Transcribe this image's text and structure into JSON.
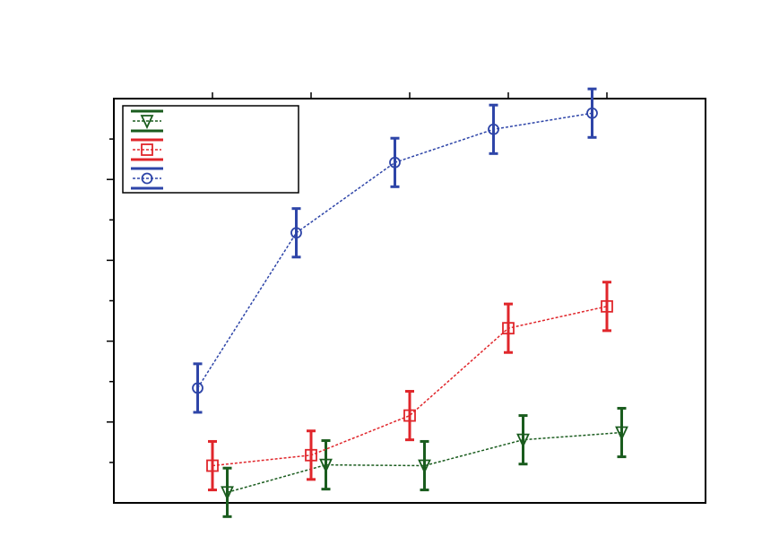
{
  "colors": {
    "green": "#1a5c1e",
    "red": "#e0262b",
    "blue": "#2e45a8"
  },
  "chart_data": {
    "type": "line",
    "title": "",
    "xlabel": "",
    "ylabel": "",
    "xlim": [
      0,
      6
    ],
    "ylim": [
      0,
      5
    ],
    "grid": false,
    "legend": "top-left",
    "series": [
      {
        "key": "green",
        "marker": "triangle-down",
        "x": [
          1.15,
          2.15,
          3.15,
          4.15,
          5.15
        ],
        "y": [
          0.13,
          0.47,
          0.46,
          0.78,
          0.87
        ],
        "err": [
          0.3,
          0.3,
          0.3,
          0.3,
          0.3
        ]
      },
      {
        "key": "red",
        "marker": "square",
        "x": [
          1.0,
          2.0,
          3.0,
          4.0,
          5.0
        ],
        "y": [
          0.46,
          0.59,
          1.08,
          2.16,
          2.43
        ],
        "err": [
          0.3,
          0.3,
          0.3,
          0.3,
          0.3
        ]
      },
      {
        "key": "blue",
        "marker": "circle",
        "x": [
          0.85,
          1.85,
          2.85,
          3.85,
          4.85
        ],
        "y": [
          1.42,
          3.34,
          4.21,
          4.62,
          4.82
        ],
        "err": [
          0.3,
          0.3,
          0.3,
          0.3,
          0.3
        ]
      }
    ]
  }
}
